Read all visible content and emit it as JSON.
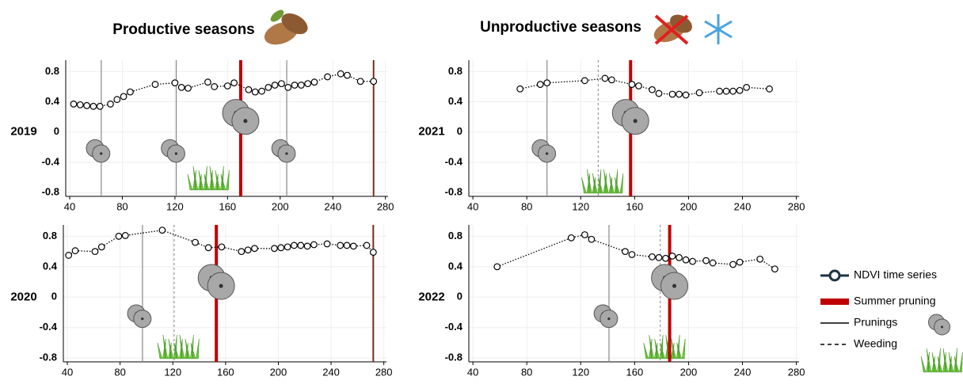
{
  "headings": [
    "Productive seasons",
    "Unproductive seasons"
  ],
  "legend": {
    "ndvi": "NDVI time series",
    "summer_pruning": "Summer pruning",
    "prunings": "Prunings",
    "weeding": "Weeding"
  },
  "colors": {
    "ndvi": "#1b3342",
    "summer_pruning": "#c00000",
    "prunings": "#888888",
    "weeding": "#999999",
    "other": "#7a2c1c"
  },
  "chart_data": [
    {
      "type": "line",
      "label": "2019",
      "x": [
        43,
        48,
        53,
        58,
        63,
        71,
        76,
        81,
        86,
        105,
        120,
        125,
        130,
        145,
        150,
        160,
        165,
        176,
        181,
        186,
        191,
        196,
        201,
        206,
        211,
        216,
        221,
        226,
        236,
        246,
        251,
        261,
        271
      ],
      "values": [
        0.37,
        0.36,
        0.35,
        0.34,
        0.34,
        0.37,
        0.43,
        0.47,
        0.53,
        0.63,
        0.65,
        0.59,
        0.58,
        0.66,
        0.6,
        0.61,
        0.65,
        0.56,
        0.53,
        0.54,
        0.59,
        0.62,
        0.64,
        0.59,
        0.62,
        0.62,
        0.64,
        0.66,
        0.73,
        0.77,
        0.75,
        0.67,
        0.67
      ],
      "xlim": [
        37,
        282
      ],
      "ylim": [
        -0.85,
        0.95
      ],
      "xticks": [
        40,
        80,
        120,
        160,
        200,
        240,
        280
      ],
      "yticks": [
        0.8,
        0.4,
        0,
        -0.4,
        -0.8
      ],
      "grid": true,
      "prunings": [
        64,
        121,
        205
      ],
      "weeding": [],
      "summer_pruning": [
        170
      ],
      "other_lines": [
        271
      ]
    },
    {
      "type": "line",
      "label": "2021",
      "x": [
        75,
        90,
        95,
        123,
        138,
        143,
        158,
        163,
        173,
        178,
        188,
        193,
        198,
        208,
        223,
        228,
        233,
        238,
        243,
        260
      ],
      "values": [
        0.57,
        0.63,
        0.65,
        0.68,
        0.71,
        0.69,
        0.63,
        0.61,
        0.56,
        0.51,
        0.5,
        0.5,
        0.49,
        0.52,
        0.54,
        0.54,
        0.54,
        0.55,
        0.59,
        0.57
      ],
      "xlim": [
        37,
        282
      ],
      "ylim": [
        -0.85,
        0.95
      ],
      "xticks": [
        40,
        80,
        120,
        160,
        200,
        240,
        280
      ],
      "yticks": [
        0.8,
        0.4,
        0,
        -0.4,
        -0.8
      ],
      "grid": true,
      "prunings": [
        95
      ],
      "weeding": [
        133
      ],
      "summer_pruning": [
        157
      ],
      "other_lines": []
    },
    {
      "type": "line",
      "label": "2020",
      "x": [
        41,
        46,
        61,
        66,
        79,
        84,
        112,
        137,
        147,
        157,
        172,
        177,
        182,
        197,
        202,
        207,
        212,
        217,
        222,
        227,
        237,
        247,
        252,
        257,
        267,
        272
      ],
      "values": [
        0.55,
        0.61,
        0.6,
        0.66,
        0.8,
        0.81,
        0.88,
        0.72,
        0.65,
        0.66,
        0.6,
        0.62,
        0.64,
        0.64,
        0.65,
        0.66,
        0.68,
        0.68,
        0.67,
        0.69,
        0.7,
        0.68,
        0.68,
        0.67,
        0.68,
        0.59
      ],
      "xlim": [
        37,
        282
      ],
      "ylim": [
        -0.85,
        0.95
      ],
      "xticks": [
        40,
        80,
        120,
        160,
        200,
        240,
        280
      ],
      "yticks": [
        0.8,
        0.4,
        0,
        -0.4,
        -0.8
      ],
      "grid": true,
      "prunings": [
        97
      ],
      "weeding": [
        121
      ],
      "summer_pruning": [
        153
      ],
      "other_lines": [
        272
      ]
    },
    {
      "type": "line",
      "label": "2022",
      "x": [
        58,
        113,
        123,
        128,
        153,
        158,
        173,
        178,
        183,
        188,
        193,
        198,
        203,
        213,
        218,
        233,
        238,
        253,
        264
      ],
      "values": [
        0.4,
        0.78,
        0.82,
        0.76,
        0.6,
        0.56,
        0.53,
        0.52,
        0.51,
        0.54,
        0.52,
        0.49,
        0.47,
        0.48,
        0.45,
        0.43,
        0.46,
        0.5,
        0.37
      ],
      "xlim": [
        37,
        282
      ],
      "ylim": [
        -0.85,
        0.95
      ],
      "xticks": [
        40,
        80,
        120,
        160,
        200,
        240,
        280
      ],
      "yticks": [
        0.8,
        0.4,
        0,
        -0.4,
        -0.8
      ],
      "grid": true,
      "prunings": [
        141
      ],
      "weeding": [
        179
      ],
      "summer_pruning": [
        186
      ],
      "other_lines": []
    }
  ]
}
